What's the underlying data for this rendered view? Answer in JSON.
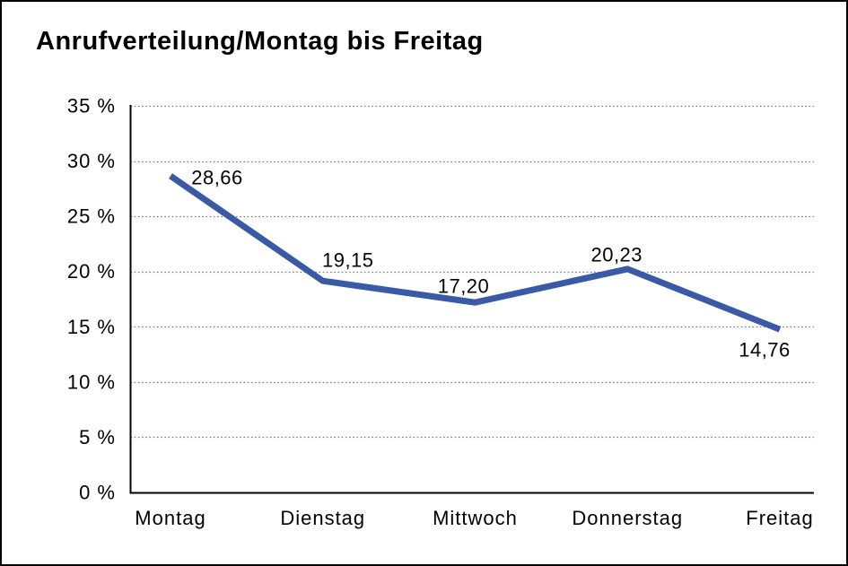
{
  "page": {
    "title": "Anrufverteilung/Montag bis Freitag"
  },
  "colors": {
    "series_line": "#3B5AA6",
    "gridline": "#777777",
    "axis": "#000000",
    "text": "#000000",
    "background": "#FFFFFF",
    "frame_border": "#000000"
  },
  "chart_data": {
    "type": "line",
    "title": "Anrufverteilung/Montag bis Freitag",
    "categories": [
      "Montag",
      "Dienstag",
      "Mittwoch",
      "Donnerstag",
      "Freitag"
    ],
    "values": [
      28.66,
      19.15,
      17.2,
      20.23,
      14.76
    ],
    "point_labels": [
      "28,66",
      "19,15",
      "17,20",
      "20,23",
      "14,76"
    ],
    "unit": "%",
    "y_ticks": [
      {
        "value": 0,
        "label": "0 %"
      },
      {
        "value": 5,
        "label": "5 %"
      },
      {
        "value": 10,
        "label": "10 %"
      },
      {
        "value": 15,
        "label": "15 %"
      },
      {
        "value": 20,
        "label": "20 %"
      },
      {
        "value": 25,
        "label": "25 %"
      },
      {
        "value": 30,
        "label": "30 %"
      },
      {
        "value": 35,
        "label": "35 %"
      }
    ],
    "ylim": [
      0,
      35
    ],
    "xlabel": "",
    "ylabel": "",
    "grid": "horizontal-dotted",
    "legend": "none"
  }
}
